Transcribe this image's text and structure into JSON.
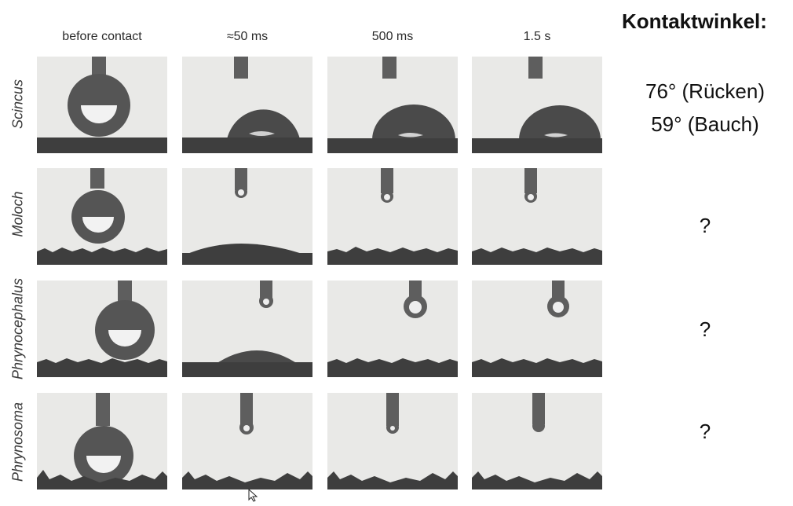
{
  "columns": [
    "before contact",
    "≈50 ms",
    "500 ms",
    "1.5 s"
  ],
  "rows": [
    {
      "label": "Scincus"
    },
    {
      "label": "Moloch"
    },
    {
      "label": "Phrynocephalus"
    },
    {
      "label": "Phrynosoma"
    }
  ],
  "side": {
    "title": "Kontaktwinkel:",
    "values": [
      "76° (Rücken)",
      "59° (Bauch)",
      "?",
      "?",
      "?"
    ]
  }
}
